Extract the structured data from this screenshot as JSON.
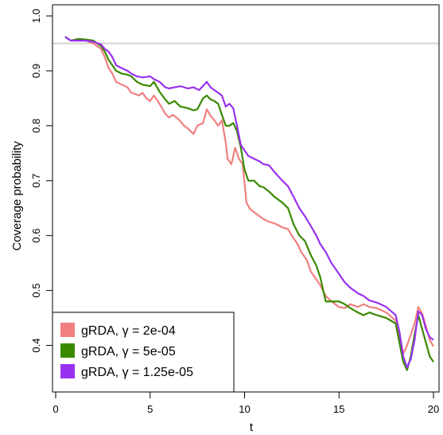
{
  "chart_data": {
    "type": "line",
    "title": "",
    "xlabel": "t",
    "ylabel": "Coverage probability",
    "xlim": [
      0,
      20
    ],
    "ylim": [
      0.35,
      1.0
    ],
    "x_ticks": [
      "0",
      "5",
      "10",
      "15",
      "20"
    ],
    "y_ticks": [
      "0.4",
      "0.5",
      "0.6",
      "0.7",
      "0.8",
      "0.9",
      "1.0"
    ],
    "grid": false,
    "legend": {
      "position": "bottom-left"
    },
    "reference_line": {
      "y": 0.95,
      "color": "#d3d3d3"
    },
    "series": [
      {
        "name": "gRDA, γ = 2e-04",
        "color": "#f08080",
        "points": [
          [
            0.5,
            0.962
          ],
          [
            0.8,
            0.955
          ],
          [
            1.2,
            0.958
          ],
          [
            1.6,
            0.955
          ],
          [
            2.0,
            0.95
          ],
          [
            2.4,
            0.94
          ],
          [
            2.6,
            0.925
          ],
          [
            2.8,
            0.905
          ],
          [
            3.0,
            0.895
          ],
          [
            3.2,
            0.88
          ],
          [
            3.5,
            0.875
          ],
          [
            3.8,
            0.87
          ],
          [
            4.0,
            0.86
          ],
          [
            4.2,
            0.858
          ],
          [
            4.4,
            0.855
          ],
          [
            4.6,
            0.86
          ],
          [
            4.8,
            0.85
          ],
          [
            5.0,
            0.845
          ],
          [
            5.2,
            0.855
          ],
          [
            5.5,
            0.84
          ],
          [
            5.8,
            0.822
          ],
          [
            6.0,
            0.815
          ],
          [
            6.2,
            0.82
          ],
          [
            6.5,
            0.812
          ],
          [
            6.8,
            0.8
          ],
          [
            7.0,
            0.795
          ],
          [
            7.3,
            0.785
          ],
          [
            7.5,
            0.8
          ],
          [
            7.8,
            0.805
          ],
          [
            8.0,
            0.83
          ],
          [
            8.2,
            0.818
          ],
          [
            8.4,
            0.81
          ],
          [
            8.6,
            0.8
          ],
          [
            8.8,
            0.81
          ],
          [
            9.0,
            0.77
          ],
          [
            9.1,
            0.74
          ],
          [
            9.3,
            0.73
          ],
          [
            9.5,
            0.76
          ],
          [
            9.7,
            0.74
          ],
          [
            9.9,
            0.73
          ],
          [
            10.0,
            0.695
          ],
          [
            10.1,
            0.66
          ],
          [
            10.3,
            0.648
          ],
          [
            10.6,
            0.64
          ],
          [
            11.0,
            0.63
          ],
          [
            11.3,
            0.625
          ],
          [
            11.6,
            0.622
          ],
          [
            12.0,
            0.615
          ],
          [
            12.3,
            0.612
          ],
          [
            12.5,
            0.6
          ],
          [
            12.8,
            0.585
          ],
          [
            13.0,
            0.57
          ],
          [
            13.3,
            0.555
          ],
          [
            13.5,
            0.535
          ],
          [
            13.8,
            0.52
          ],
          [
            14.0,
            0.51
          ],
          [
            14.3,
            0.49
          ],
          [
            14.6,
            0.48
          ],
          [
            15.0,
            0.47
          ],
          [
            15.3,
            0.468
          ],
          [
            15.6,
            0.475
          ],
          [
            16.0,
            0.47
          ],
          [
            16.3,
            0.475
          ],
          [
            16.6,
            0.47
          ],
          [
            17.0,
            0.468
          ],
          [
            17.5,
            0.46
          ],
          [
            18.0,
            0.445
          ],
          [
            18.2,
            0.42
          ],
          [
            18.4,
            0.385
          ],
          [
            18.6,
            0.4
          ],
          [
            18.8,
            0.42
          ],
          [
            19.0,
            0.44
          ],
          [
            19.2,
            0.47
          ],
          [
            19.4,
            0.458
          ],
          [
            19.6,
            0.435
          ],
          [
            19.8,
            0.41
          ],
          [
            20.0,
            0.398
          ]
        ]
      },
      {
        "name": "gRDA, γ = 5e-05",
        "color": "#3a8a00",
        "points": [
          [
            0.5,
            0.962
          ],
          [
            0.8,
            0.955
          ],
          [
            1.2,
            0.958
          ],
          [
            1.6,
            0.957
          ],
          [
            2.0,
            0.955
          ],
          [
            2.4,
            0.945
          ],
          [
            2.6,
            0.935
          ],
          [
            2.8,
            0.92
          ],
          [
            3.0,
            0.91
          ],
          [
            3.2,
            0.9
          ],
          [
            3.5,
            0.895
          ],
          [
            3.8,
            0.893
          ],
          [
            4.0,
            0.89
          ],
          [
            4.3,
            0.88
          ],
          [
            4.6,
            0.875
          ],
          [
            5.0,
            0.872
          ],
          [
            5.2,
            0.88
          ],
          [
            5.5,
            0.862
          ],
          [
            5.8,
            0.848
          ],
          [
            6.0,
            0.84
          ],
          [
            6.3,
            0.845
          ],
          [
            6.6,
            0.835
          ],
          [
            7.0,
            0.832
          ],
          [
            7.3,
            0.828
          ],
          [
            7.5,
            0.83
          ],
          [
            7.8,
            0.85
          ],
          [
            8.0,
            0.855
          ],
          [
            8.2,
            0.848
          ],
          [
            8.4,
            0.845
          ],
          [
            8.6,
            0.84
          ],
          [
            8.8,
            0.82
          ],
          [
            9.0,
            0.8
          ],
          [
            9.2,
            0.8
          ],
          [
            9.4,
            0.805
          ],
          [
            9.6,
            0.79
          ],
          [
            9.8,
            0.76
          ],
          [
            10.0,
            0.72
          ],
          [
            10.2,
            0.7
          ],
          [
            10.5,
            0.7
          ],
          [
            10.8,
            0.69
          ],
          [
            11.0,
            0.688
          ],
          [
            11.3,
            0.68
          ],
          [
            11.6,
            0.67
          ],
          [
            12.0,
            0.66
          ],
          [
            12.3,
            0.65
          ],
          [
            12.6,
            0.62
          ],
          [
            12.9,
            0.6
          ],
          [
            13.2,
            0.59
          ],
          [
            13.5,
            0.565
          ],
          [
            13.8,
            0.545
          ],
          [
            14.0,
            0.525
          ],
          [
            14.3,
            0.48
          ],
          [
            14.6,
            0.48
          ],
          [
            15.0,
            0.48
          ],
          [
            15.3,
            0.475
          ],
          [
            15.6,
            0.468
          ],
          [
            16.0,
            0.46
          ],
          [
            16.3,
            0.455
          ],
          [
            16.6,
            0.46
          ],
          [
            17.0,
            0.455
          ],
          [
            17.5,
            0.45
          ],
          [
            18.0,
            0.44
          ],
          [
            18.2,
            0.405
          ],
          [
            18.4,
            0.37
          ],
          [
            18.6,
            0.355
          ],
          [
            18.8,
            0.38
          ],
          [
            19.0,
            0.42
          ],
          [
            19.2,
            0.455
          ],
          [
            19.4,
            0.43
          ],
          [
            19.6,
            0.405
          ],
          [
            19.8,
            0.38
          ],
          [
            20.0,
            0.37
          ]
        ]
      },
      {
        "name": "gRDA, γ = 1.25e-05",
        "color": "#9932f0",
        "points": [
          [
            0.5,
            0.962
          ],
          [
            0.8,
            0.955
          ],
          [
            1.2,
            0.955
          ],
          [
            1.6,
            0.955
          ],
          [
            2.0,
            0.953
          ],
          [
            2.4,
            0.948
          ],
          [
            2.6,
            0.94
          ],
          [
            2.8,
            0.935
          ],
          [
            3.0,
            0.925
          ],
          [
            3.2,
            0.91
          ],
          [
            3.5,
            0.905
          ],
          [
            3.8,
            0.9
          ],
          [
            4.0,
            0.895
          ],
          [
            4.3,
            0.89
          ],
          [
            4.6,
            0.888
          ],
          [
            5.0,
            0.89
          ],
          [
            5.2,
            0.885
          ],
          [
            5.5,
            0.88
          ],
          [
            5.8,
            0.87
          ],
          [
            6.0,
            0.868
          ],
          [
            6.3,
            0.87
          ],
          [
            6.6,
            0.872
          ],
          [
            7.0,
            0.868
          ],
          [
            7.3,
            0.87
          ],
          [
            7.6,
            0.865
          ],
          [
            8.0,
            0.88
          ],
          [
            8.2,
            0.87
          ],
          [
            8.4,
            0.865
          ],
          [
            8.6,
            0.86
          ],
          [
            8.8,
            0.855
          ],
          [
            9.0,
            0.835
          ],
          [
            9.2,
            0.84
          ],
          [
            9.4,
            0.832
          ],
          [
            9.6,
            0.8
          ],
          [
            9.8,
            0.765
          ],
          [
            10.0,
            0.755
          ],
          [
            10.2,
            0.745
          ],
          [
            10.5,
            0.74
          ],
          [
            10.8,
            0.735
          ],
          [
            11.0,
            0.73
          ],
          [
            11.3,
            0.728
          ],
          [
            11.6,
            0.715
          ],
          [
            12.0,
            0.7
          ],
          [
            12.3,
            0.69
          ],
          [
            12.6,
            0.67
          ],
          [
            12.9,
            0.65
          ],
          [
            13.2,
            0.635
          ],
          [
            13.5,
            0.618
          ],
          [
            13.8,
            0.6
          ],
          [
            14.0,
            0.585
          ],
          [
            14.3,
            0.57
          ],
          [
            14.6,
            0.55
          ],
          [
            15.0,
            0.53
          ],
          [
            15.3,
            0.515
          ],
          [
            15.6,
            0.505
          ],
          [
            16.0,
            0.495
          ],
          [
            16.3,
            0.49
          ],
          [
            16.6,
            0.482
          ],
          [
            17.0,
            0.478
          ],
          [
            17.5,
            0.47
          ],
          [
            18.0,
            0.455
          ],
          [
            18.2,
            0.425
          ],
          [
            18.4,
            0.38
          ],
          [
            18.6,
            0.36
          ],
          [
            18.8,
            0.375
          ],
          [
            19.0,
            0.41
          ],
          [
            19.2,
            0.462
          ],
          [
            19.4,
            0.455
          ],
          [
            19.6,
            0.43
          ],
          [
            19.8,
            0.415
          ],
          [
            20.0,
            0.41
          ]
        ]
      }
    ]
  }
}
